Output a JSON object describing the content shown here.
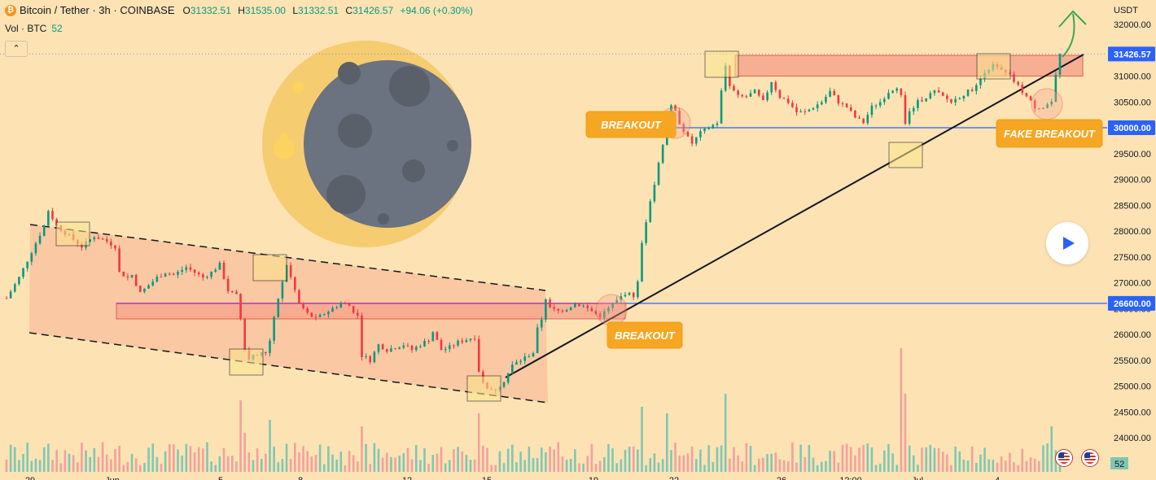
{
  "header": {
    "title": "Bitcoin / Tether · 3h · COINBASE",
    "coin_icon": "bitcoin-icon",
    "o_label": "O",
    "o": "31332.51",
    "h_label": "H",
    "h": "31535.00",
    "l_label": "L",
    "l": "31332.51",
    "c_label": "C",
    "c": "31426.57",
    "change": "+94.06 (+0.30%)",
    "vol_label": "Vol · BTC",
    "vol_value": "52",
    "collapse_icon": "chevron-up-icon"
  },
  "colors": {
    "background": "#fde3b3",
    "up": "#089981",
    "down": "#f23645",
    "support": "#2962ff",
    "zone": "#f7a68f",
    "price_tag": "#2962ff",
    "annotation": "#f6a623"
  },
  "chart_data": {
    "type": "candlestick",
    "symbol": "BTCUSDT",
    "timeframe": "3h",
    "currency": "USDT",
    "yticks": [
      24000,
      24500,
      25000,
      25500,
      26000,
      26500,
      27000,
      27500,
      28000,
      28500,
      29000,
      29500,
      30000,
      30500,
      31000,
      31500,
      32000
    ],
    "ylim": [
      23800,
      32400
    ],
    "xticks": [
      "29",
      "Jun",
      "5",
      "8",
      "12",
      "15",
      "19",
      "22",
      "26",
      "12:00",
      "Jul",
      "4"
    ],
    "current_price": 31426.57,
    "price_tags": [
      {
        "label": "31426.57",
        "value": 31426.57,
        "color": "#2962ff"
      },
      {
        "label": "30000.00",
        "value": 30000,
        "color": "#2962ff"
      },
      {
        "label": "26600.00",
        "value": 26600,
        "color": "#2962ff"
      }
    ],
    "volume_tag": "52",
    "support_levels": [
      30000,
      26600
    ],
    "resistance_zones": [
      {
        "from": 31000,
        "to": 31400
      },
      {
        "from": 26300,
        "to": 26600
      }
    ],
    "annotations": [
      "BREAKOUT",
      "BREAKOUT",
      "FAKE BREAKOUT"
    ],
    "price_path": [
      [
        0,
        26700
      ],
      [
        3,
        27100
      ],
      [
        6,
        27600
      ],
      [
        9,
        28100
      ],
      [
        10,
        28400
      ],
      [
        12,
        28100
      ],
      [
        15,
        27900
      ],
      [
        18,
        27700
      ],
      [
        21,
        27900
      ],
      [
        24,
        27800
      ],
      [
        26,
        27700
      ],
      [
        27,
        27200
      ],
      [
        29,
        27100
      ],
      [
        30,
        27150
      ],
      [
        32,
        26800
      ],
      [
        34,
        26950
      ],
      [
        36,
        27100
      ],
      [
        38,
        27200
      ],
      [
        40,
        27150
      ],
      [
        43,
        27300
      ],
      [
        45,
        27200
      ],
      [
        47,
        27100
      ],
      [
        49,
        27200
      ],
      [
        51,
        27350
      ],
      [
        52,
        27100
      ],
      [
        53,
        26850
      ],
      [
        55,
        26750
      ],
      [
        56,
        26300
      ],
      [
        57,
        25700
      ],
      [
        58,
        25550
      ],
      [
        60,
        25600
      ],
      [
        62,
        25650
      ],
      [
        63,
        25900
      ],
      [
        64,
        26300
      ],
      [
        65,
        26700
      ],
      [
        66,
        27000
      ],
      [
        67,
        27350
      ],
      [
        68,
        27100
      ],
      [
        70,
        26600
      ],
      [
        72,
        26400
      ],
      [
        74,
        26300
      ],
      [
        76,
        26400
      ],
      [
        78,
        26500
      ],
      [
        80,
        26600
      ],
      [
        82,
        26550
      ],
      [
        84,
        26350
      ],
      [
        85,
        25600
      ],
      [
        87,
        25500
      ],
      [
        89,
        25800
      ],
      [
        91,
        25700
      ],
      [
        93,
        25750
      ],
      [
        95,
        25800
      ],
      [
        97,
        25700
      ],
      [
        99,
        25800
      ],
      [
        101,
        25900
      ],
      [
        102,
        26050
      ],
      [
        104,
        25700
      ],
      [
        106,
        25750
      ],
      [
        108,
        25850
      ],
      [
        110,
        25900
      ],
      [
        112,
        25950
      ],
      [
        113,
        25300
      ],
      [
        114,
        25050
      ],
      [
        116,
        24900
      ],
      [
        117,
        24950
      ],
      [
        119,
        25100
      ],
      [
        121,
        25400
      ],
      [
        123,
        25500
      ],
      [
        125,
        25600
      ],
      [
        126,
        25650
      ],
      [
        127,
        26100
      ],
      [
        128,
        26300
      ],
      [
        129,
        26700
      ],
      [
        130,
        26500
      ],
      [
        132,
        26450
      ],
      [
        134,
        26500
      ],
      [
        136,
        26600
      ],
      [
        138,
        26550
      ],
      [
        140,
        26450
      ],
      [
        142,
        26350
      ],
      [
        144,
        26500
      ],
      [
        146,
        26650
      ],
      [
        148,
        26800
      ],
      [
        150,
        26750
      ],
      [
        151,
        27000
      ],
      [
        152,
        27800
      ],
      [
        153,
        28200
      ],
      [
        154,
        28600
      ],
      [
        155,
        28900
      ],
      [
        156,
        29300
      ],
      [
        157,
        29700
      ],
      [
        158,
        30000
      ],
      [
        159,
        30400
      ],
      [
        160,
        30300
      ],
      [
        161,
        30100
      ],
      [
        163,
        29800
      ],
      [
        164,
        29700
      ],
      [
        166,
        29900
      ],
      [
        168,
        30000
      ],
      [
        170,
        30100
      ],
      [
        171,
        30700
      ],
      [
        172,
        31200
      ],
      [
        173,
        30800
      ],
      [
        175,
        30600
      ],
      [
        177,
        30600
      ],
      [
        179,
        30700
      ],
      [
        181,
        30500
      ],
      [
        183,
        30900
      ],
      [
        185,
        30600
      ],
      [
        187,
        30500
      ],
      [
        189,
        30300
      ],
      [
        191,
        30300
      ],
      [
        193,
        30400
      ],
      [
        195,
        30500
      ],
      [
        197,
        30700
      ],
      [
        199,
        30500
      ],
      [
        201,
        30400
      ],
      [
        203,
        30200
      ],
      [
        205,
        30100
      ],
      [
        207,
        30400
      ],
      [
        209,
        30500
      ],
      [
        211,
        30700
      ],
      [
        213,
        30800
      ],
      [
        214,
        30600
      ],
      [
        215,
        30100
      ],
      [
        216,
        30300
      ],
      [
        218,
        30500
      ],
      [
        220,
        30600
      ],
      [
        222,
        30700
      ],
      [
        224,
        30600
      ],
      [
        226,
        30500
      ],
      [
        228,
        30600
      ],
      [
        230,
        30700
      ],
      [
        232,
        30800
      ],
      [
        234,
        31100
      ],
      [
        236,
        31200
      ],
      [
        238,
        31100
      ],
      [
        240,
        31000
      ],
      [
        242,
        30800
      ],
      [
        244,
        30600
      ],
      [
        246,
        30400
      ],
      [
        248,
        30400
      ],
      [
        250,
        30500
      ],
      [
        251,
        31000
      ],
      [
        252,
        31426.57
      ]
    ]
  }
}
